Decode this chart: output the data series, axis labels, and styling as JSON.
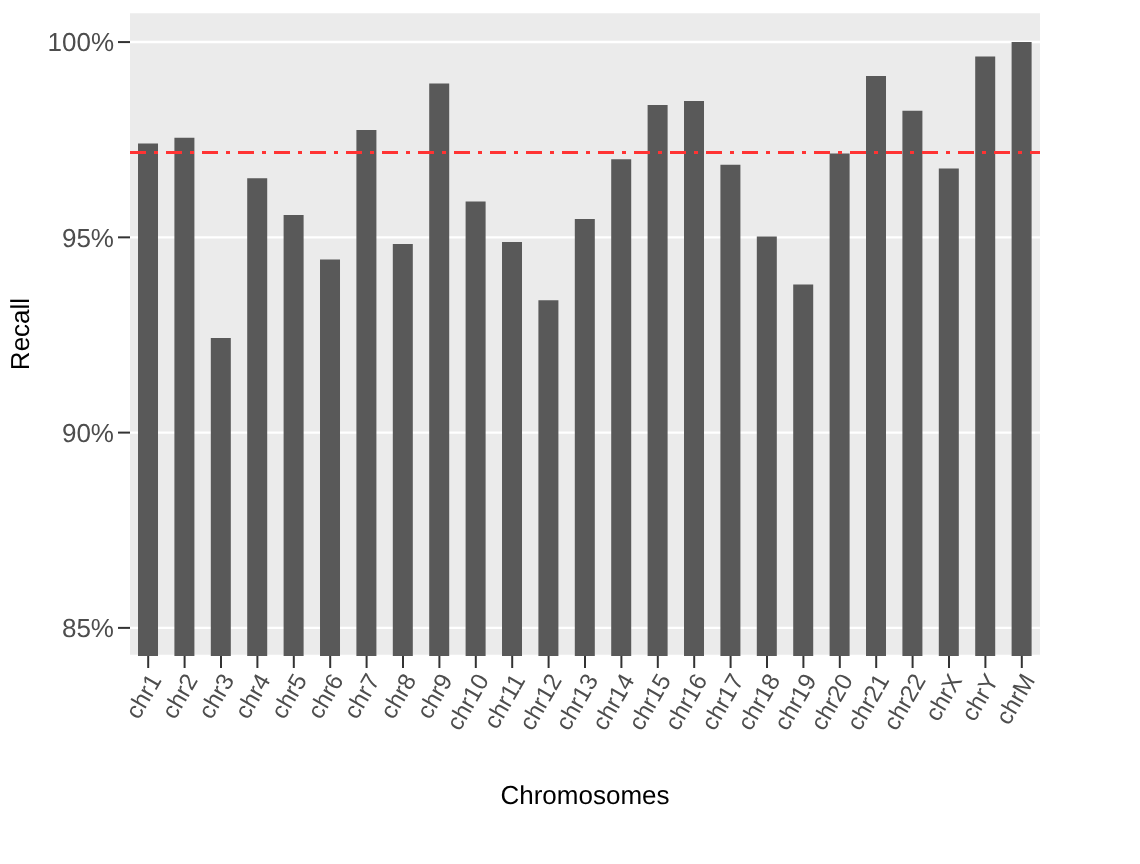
{
  "chart_data": {
    "type": "bar",
    "xlabel": "Chromosomes",
    "ylabel": "Recall",
    "categories": [
      "chr1",
      "chr2",
      "chr3",
      "chr4",
      "chr5",
      "chr6",
      "chr7",
      "chr8",
      "chr9",
      "chr10",
      "chr11",
      "chr12",
      "chr13",
      "chr14",
      "chr15",
      "chr16",
      "chr17",
      "chr18",
      "chr19",
      "chr20",
      "chr21",
      "chr22",
      "chrX",
      "chrY",
      "chrM"
    ],
    "values": [
      97.4,
      97.55,
      92.42,
      96.51,
      95.57,
      94.43,
      97.75,
      94.83,
      98.94,
      95.92,
      94.88,
      93.39,
      95.47,
      97.0,
      98.39,
      98.49,
      96.86,
      95.02,
      93.79,
      97.15,
      99.13,
      98.24,
      96.76,
      99.63,
      100.0
    ],
    "color": "#595959",
    "ylim": [
      84.28,
      100.77
    ],
    "yticks": [
      {
        "value": 85,
        "label": "85%"
      },
      {
        "value": 90,
        "label": "90%"
      },
      {
        "value": 95,
        "label": "95%"
      },
      {
        "value": 100,
        "label": "100%"
      }
    ],
    "ref_lines": [
      {
        "axis": "y",
        "value": 97.17,
        "color": "#ff3333",
        "line_style": "dashed"
      }
    ],
    "grid": "y"
  }
}
